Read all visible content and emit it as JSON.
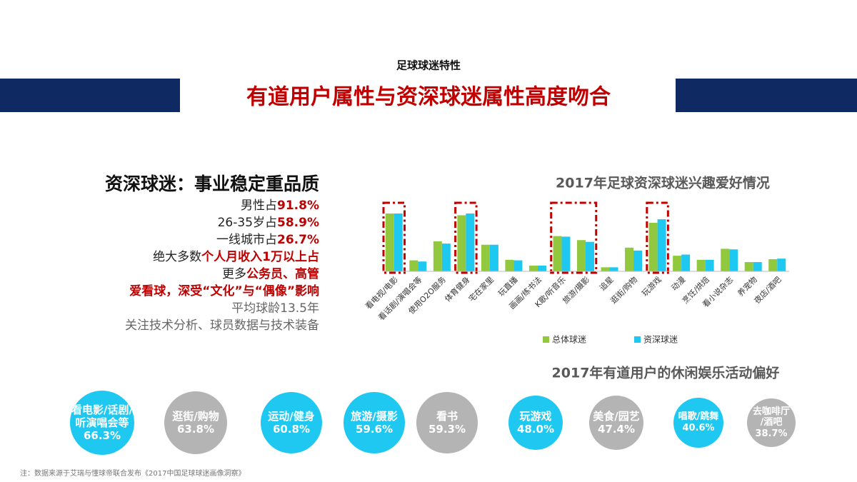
{
  "header": {
    "kicker": "足球球迷特性",
    "title": "有道用户属性与资深球迷属性高度吻合"
  },
  "profile": {
    "title": "资深球迷：事业稳定重品质",
    "lines": [
      {
        "text": "男性占",
        "em": "91.8%"
      },
      {
        "text": "26-35岁占",
        "em": "58.9%"
      },
      {
        "text": "一线城市占",
        "em": "26.7%"
      },
      {
        "text": "绝大多数",
        "em": "个人月收入1万以上占"
      },
      {
        "text": "更多",
        "em": "公务员、高管"
      },
      {
        "em": "爱看球，深受“文化”与“偶像”影响"
      },
      {
        "text": "平均球龄13.5年"
      },
      {
        "text": "关注技术分析、球员数据与技术装备"
      }
    ]
  },
  "chart_data": [
    {
      "type": "bar",
      "title": "2017年足球资深球迷兴趣爱好情况",
      "categories": [
        "看电视/电影",
        "看话剧/演唱会等",
        "使用O2O服务",
        "体育健身",
        "宅在家里",
        "玩直播",
        "画画/练书法",
        "K歌/听音乐",
        "旅游/摄影",
        "追星",
        "逛街/购物",
        "玩游戏",
        "动漫",
        "烹饪/烘焙",
        "看小说杂志",
        "养宠物",
        "夜店/酒吧"
      ],
      "series": [
        {
          "name": "总体球迷",
          "color": "#92c83e",
          "values": [
            100,
            19,
            52,
            97,
            46,
            20,
            10,
            61,
            54,
            7,
            41,
            84,
            27,
            20,
            39,
            16,
            21
          ]
        },
        {
          "name": "资深球迷",
          "color": "#1ec8f0",
          "values": [
            100,
            17,
            48,
            100,
            46,
            19,
            10,
            60,
            51,
            7,
            36,
            90,
            29,
            20,
            38,
            16,
            22
          ]
        }
      ],
      "ylim": [
        0,
        100
      ],
      "legend": "bottom"
    },
    {
      "type": "bubble",
      "title": "2017年有道用户的休闲娱乐活动偏好",
      "categories": [
        "看电影/话剧/\n听演唱会等",
        "逛街/购物",
        "运动/健身",
        "旅游/摄影",
        "看书",
        "玩游戏",
        "美食/园艺",
        "唱歌/跳舞",
        "去咖啡厅\n/酒吧"
      ],
      "values": [
        66.3,
        63.8,
        60.8,
        59.6,
        59.3,
        48.0,
        47.4,
        40.6,
        38.7
      ],
      "value_labels": [
        "66.3%",
        "63.8%",
        "60.8%",
        "59.6%",
        "59.3%",
        "48.0%",
        "47.4%",
        "40.6%",
        "38.7%"
      ],
      "colors": [
        "#1ec8f0",
        "#b4b4b4",
        "#1ec8f0",
        "#1ec8f0",
        "#b4b4b4",
        "#1ec8f0",
        "#b4b4b4",
        "#1ec8f0",
        "#b4b4b4"
      ]
    }
  ],
  "footnote": "注：数据来源于艾瑞与懂球帝联合发布《2017中国足球球迷画像洞察》"
}
